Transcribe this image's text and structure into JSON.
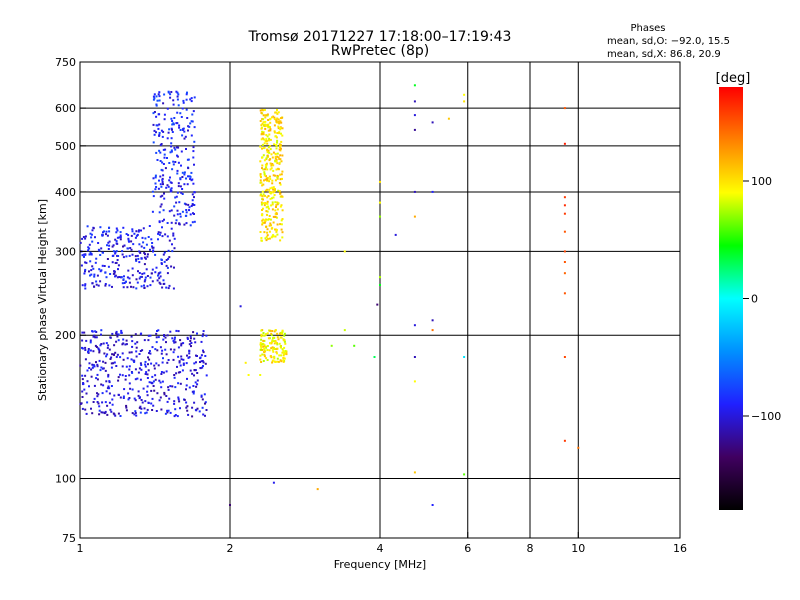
{
  "chart_data": {
    "type": "scatter",
    "title": "Tromsø 20171227 17:18:00–17:19:43",
    "subtitle": "RwPretec (8p)",
    "xlabel": "Frequency [MHz]",
    "ylabel": "Stationary phase Virtual Height [km]",
    "x_scale": "log",
    "y_scale": "log",
    "xlim": [
      1,
      16
    ],
    "ylim": [
      75,
      750
    ],
    "x_ticks": [
      1,
      2,
      4,
      6,
      8,
      10,
      16
    ],
    "x_tick_labels": [
      "1",
      "2",
      "4",
      "6",
      "8",
      "10",
      "16"
    ],
    "y_ticks": [
      75,
      100,
      200,
      300,
      400,
      500,
      600,
      750
    ],
    "y_tick_labels": [
      "75",
      "100",
      "200",
      "300",
      "400",
      "500",
      "600",
      "750"
    ],
    "grid": true,
    "stats": {
      "heading": "Phases",
      "line_o": "mean, sd,O: −92.0, 15.5",
      "line_x": "mean, sd,X:  86.8, 20.9"
    },
    "colorbar": {
      "label": "[deg]",
      "range": [
        -180,
        180
      ],
      "ticks": [
        100,
        0,
        -100
      ],
      "tick_labels": [
        "100",
        "0",
        "−100"
      ],
      "colors": [
        "#000000",
        "#400060",
        "#2020ff",
        "#0090ff",
        "#00ffff",
        "#00ff00",
        "#ffff00",
        "#ff8000",
        "#ff0000"
      ]
    },
    "clusters": [
      {
        "name": "o-lower",
        "cx": [
          1.0,
          1.8
        ],
        "cy": [
          135,
          205
        ],
        "phase": -100,
        "n": 480
      },
      {
        "name": "o-upper",
        "cx": [
          1.0,
          1.55
        ],
        "cy": [
          250,
          340
        ],
        "phase": -95,
        "n": 300
      },
      {
        "name": "o-rise",
        "cx": [
          1.4,
          1.7
        ],
        "cy": [
          340,
          650
        ],
        "phase": -90,
        "n": 260
      },
      {
        "name": "x-upper",
        "cx": [
          2.3,
          2.55
        ],
        "cy": [
          315,
          600
        ],
        "phase": 100,
        "n": 360
      },
      {
        "name": "x-lower",
        "cx": [
          2.3,
          2.6
        ],
        "cy": [
          175,
          205
        ],
        "phase": 95,
        "n": 140
      }
    ],
    "points": [
      {
        "x": 2.15,
        "y": 175,
        "phase": 95
      },
      {
        "x": 2.18,
        "y": 165,
        "phase": 90
      },
      {
        "x": 2.3,
        "y": 165,
        "phase": 88
      },
      {
        "x": 2.45,
        "y": 98,
        "phase": -95
      },
      {
        "x": 2.0,
        "y": 88,
        "phase": -130
      },
      {
        "x": 3.0,
        "y": 95,
        "phase": 120
      },
      {
        "x": 2.1,
        "y": 230,
        "phase": -100
      },
      {
        "x": 3.4,
        "y": 300,
        "phase": 90
      },
      {
        "x": 3.4,
        "y": 205,
        "phase": 80
      },
      {
        "x": 3.55,
        "y": 190,
        "phase": 60
      },
      {
        "x": 3.2,
        "y": 190,
        "phase": 70
      },
      {
        "x": 3.9,
        "y": 180,
        "phase": 30
      },
      {
        "x": 4.0,
        "y": 420,
        "phase": 100
      },
      {
        "x": 4.0,
        "y": 380,
        "phase": 90
      },
      {
        "x": 4.0,
        "y": 355,
        "phase": 70
      },
      {
        "x": 4.0,
        "y": 265,
        "phase": 75
      },
      {
        "x": 4.0,
        "y": 255,
        "phase": 40
      },
      {
        "x": 3.95,
        "y": 232,
        "phase": -130
      },
      {
        "x": 4.3,
        "y": 325,
        "phase": -100
      },
      {
        "x": 4.7,
        "y": 670,
        "phase": 40
      },
      {
        "x": 4.7,
        "y": 620,
        "phase": -110
      },
      {
        "x": 4.7,
        "y": 580,
        "phase": -100
      },
      {
        "x": 4.7,
        "y": 540,
        "phase": -120
      },
      {
        "x": 4.7,
        "y": 400,
        "phase": -110
      },
      {
        "x": 4.7,
        "y": 355,
        "phase": 120
      },
      {
        "x": 4.7,
        "y": 210,
        "phase": -100
      },
      {
        "x": 4.7,
        "y": 180,
        "phase": -110
      },
      {
        "x": 4.7,
        "y": 160,
        "phase": 90
      },
      {
        "x": 4.7,
        "y": 103,
        "phase": 110
      },
      {
        "x": 5.1,
        "y": 560,
        "phase": -110
      },
      {
        "x": 5.1,
        "y": 400,
        "phase": -90
      },
      {
        "x": 5.1,
        "y": 215,
        "phase": -110
      },
      {
        "x": 5.1,
        "y": 205,
        "phase": 140
      },
      {
        "x": 5.1,
        "y": 88,
        "phase": -90
      },
      {
        "x": 5.5,
        "y": 570,
        "phase": 110
      },
      {
        "x": 5.9,
        "y": 640,
        "phase": 90
      },
      {
        "x": 5.9,
        "y": 620,
        "phase": 100
      },
      {
        "x": 5.9,
        "y": 180,
        "phase": -10
      },
      {
        "x": 5.9,
        "y": 102,
        "phase": 60
      },
      {
        "x": 9.4,
        "y": 600,
        "phase": 150
      },
      {
        "x": 9.4,
        "y": 505,
        "phase": 170
      },
      {
        "x": 9.4,
        "y": 390,
        "phase": 160
      },
      {
        "x": 9.4,
        "y": 375,
        "phase": 165
      },
      {
        "x": 9.4,
        "y": 360,
        "phase": 160
      },
      {
        "x": 9.4,
        "y": 330,
        "phase": 150
      },
      {
        "x": 9.4,
        "y": 300,
        "phase": 155
      },
      {
        "x": 9.4,
        "y": 285,
        "phase": 150
      },
      {
        "x": 9.4,
        "y": 270,
        "phase": 145
      },
      {
        "x": 9.4,
        "y": 245,
        "phase": 150
      },
      {
        "x": 9.4,
        "y": 180,
        "phase": 155
      },
      {
        "x": 9.4,
        "y": 120,
        "phase": 160
      },
      {
        "x": 10.0,
        "y": 116,
        "phase": 140
      }
    ]
  }
}
